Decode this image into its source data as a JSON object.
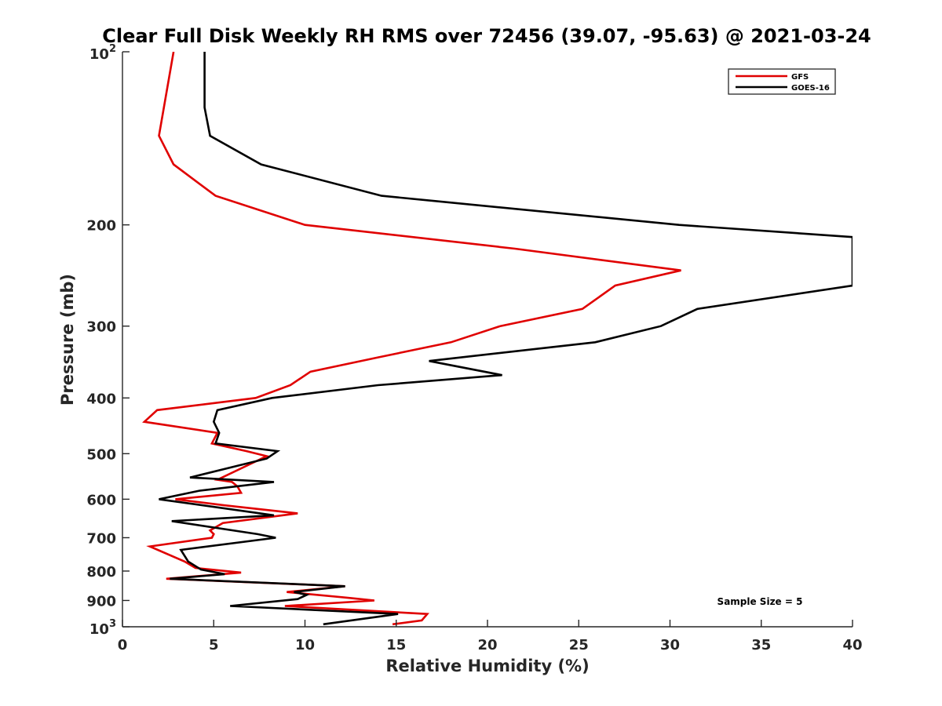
{
  "chart_data": {
    "type": "line",
    "title": "Clear Full Disk Weekly RH RMS over 72456 (39.07, -95.63) @ 2021-03-24",
    "xlabel": "Relative Humidity (%)",
    "ylabel": "Pressure (mb)",
    "xlim": [
      0,
      40
    ],
    "ylim": [
      100,
      1000
    ],
    "yscale": "log",
    "yreversed": true,
    "grid": false,
    "legend_position": "top-right",
    "xticks": [
      {
        "value": 0,
        "label": "0"
      },
      {
        "value": 5,
        "label": "5"
      },
      {
        "value": 10,
        "label": "10"
      },
      {
        "value": 15,
        "label": "15"
      },
      {
        "value": 20,
        "label": "20"
      },
      {
        "value": 25,
        "label": "25"
      },
      {
        "value": 30,
        "label": "30"
      },
      {
        "value": 35,
        "label": "35"
      },
      {
        "value": 40,
        "label": "40"
      }
    ],
    "yticks": [
      {
        "value": 100,
        "base": "10",
        "exp": "2"
      },
      {
        "value": 200,
        "label": "200"
      },
      {
        "value": 300,
        "label": "300"
      },
      {
        "value": 400,
        "label": "400"
      },
      {
        "value": 500,
        "label": "500"
      },
      {
        "value": 600,
        "label": "600"
      },
      {
        "value": 700,
        "label": "700"
      },
      {
        "value": 800,
        "label": "800"
      },
      {
        "value": 900,
        "label": "900"
      },
      {
        "value": 1000,
        "base": "10",
        "exp": "3"
      }
    ],
    "annotation": "Sample Size = 5",
    "series": [
      {
        "name": "GFS",
        "color": "#e00000",
        "points": [
          [
            2.8,
            100
          ],
          [
            2.0,
            140
          ],
          [
            2.8,
            157
          ],
          [
            5.1,
            178
          ],
          [
            10.0,
            200
          ],
          [
            21.5,
            220
          ],
          [
            30.6,
            240
          ],
          [
            27.0,
            255
          ],
          [
            25.2,
            280
          ],
          [
            20.7,
            300
          ],
          [
            18.0,
            320
          ],
          [
            14.0,
            340
          ],
          [
            10.3,
            360
          ],
          [
            9.2,
            380
          ],
          [
            7.3,
            400
          ],
          [
            1.9,
            420
          ],
          [
            1.2,
            440
          ],
          [
            5.2,
            460
          ],
          [
            4.9,
            480
          ],
          [
            6.8,
            495
          ],
          [
            7.9,
            505
          ],
          [
            5.2,
            555
          ],
          [
            6.0,
            560
          ],
          [
            6.3,
            570
          ],
          [
            6.5,
            585
          ],
          [
            2.9,
            600
          ],
          [
            5.6,
            615
          ],
          [
            9.6,
            635
          ],
          [
            5.5,
            660
          ],
          [
            4.8,
            680
          ],
          [
            5.0,
            690
          ],
          [
            4.9,
            700
          ],
          [
            1.5,
            725
          ],
          [
            3.4,
            770
          ],
          [
            4.0,
            790
          ],
          [
            6.5,
            805
          ],
          [
            2.4,
            825
          ],
          [
            12.2,
            850
          ],
          [
            9.0,
            870
          ],
          [
            12.3,
            890
          ],
          [
            13.8,
            900
          ],
          [
            8.9,
            920
          ],
          [
            16.7,
            950
          ],
          [
            16.4,
            975
          ],
          [
            14.8,
            990
          ]
        ]
      },
      {
        "name": "GOES-16",
        "color": "#000000",
        "points": [
          [
            4.5,
            100
          ],
          [
            4.5,
            125
          ],
          [
            4.8,
            140
          ],
          [
            7.6,
            157
          ],
          [
            14.2,
            178
          ],
          [
            30.5,
            200
          ],
          [
            40.0,
            210
          ],
          [
            40.0,
            255
          ],
          [
            31.5,
            280
          ],
          [
            29.5,
            300
          ],
          [
            25.9,
            320
          ],
          [
            16.8,
            345
          ],
          [
            20.8,
            365
          ],
          [
            14.0,
            380
          ],
          [
            8.2,
            400
          ],
          [
            5.2,
            420
          ],
          [
            5.0,
            440
          ],
          [
            5.3,
            460
          ],
          [
            5.1,
            480
          ],
          [
            8.5,
            495
          ],
          [
            7.9,
            510
          ],
          [
            3.7,
            550
          ],
          [
            8.3,
            560
          ],
          [
            4.2,
            580
          ],
          [
            2.0,
            600
          ],
          [
            8.3,
            640
          ],
          [
            2.7,
            655
          ],
          [
            7.4,
            690
          ],
          [
            8.4,
            700
          ],
          [
            3.2,
            735
          ],
          [
            3.6,
            770
          ],
          [
            4.3,
            795
          ],
          [
            5.6,
            810
          ],
          [
            2.6,
            825
          ],
          [
            12.2,
            850
          ],
          [
            9.4,
            870
          ],
          [
            10.1,
            880
          ],
          [
            9.6,
            895
          ],
          [
            5.9,
            920
          ],
          [
            15.1,
            950
          ],
          [
            11.0,
            990
          ]
        ]
      }
    ]
  }
}
